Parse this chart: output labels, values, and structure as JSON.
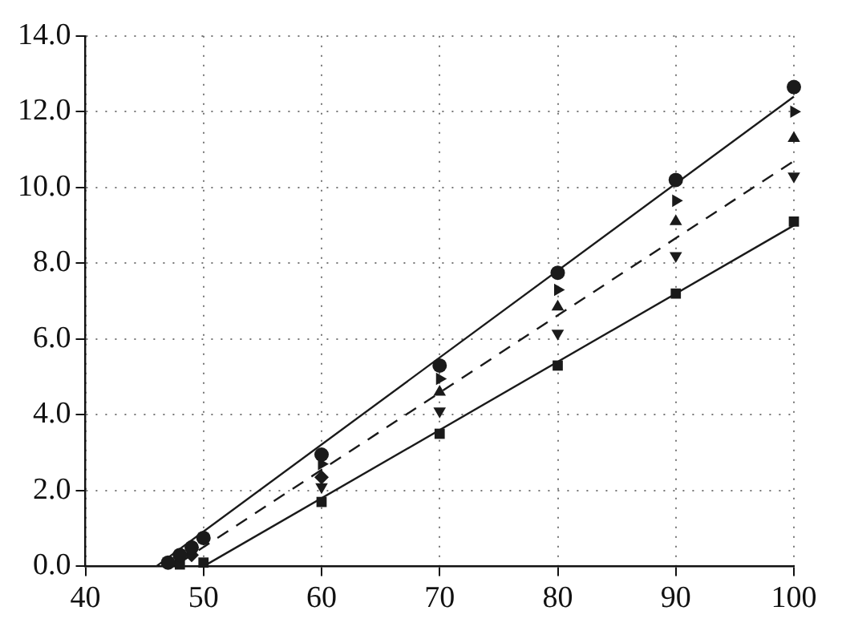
{
  "chart_data": {
    "type": "scatter",
    "xlim": [
      40,
      100
    ],
    "xticks": [
      40,
      50,
      60,
      70,
      80,
      90,
      100
    ],
    "ylim": [
      0,
      14
    ],
    "yticks": [
      {
        "value": 0,
        "label": "0.0"
      },
      {
        "value": 2,
        "label": "2.0"
      },
      {
        "value": 4,
        "label": "4.0"
      },
      {
        "value": 6,
        "label": "6.0"
      },
      {
        "value": 8,
        "label": "8.0"
      },
      {
        "value": 10,
        "label": "10.0"
      },
      {
        "value": 12,
        "label": "12.0"
      },
      {
        "value": 14,
        "label": "14.0"
      }
    ],
    "grid": true,
    "legend": false,
    "series": [
      {
        "type": "scatter",
        "marker": "circle",
        "color": "#1a1a1a",
        "x": [
          47,
          48,
          49,
          50,
          60,
          70,
          80,
          90,
          100
        ],
        "values": [
          0.1,
          0.3,
          0.5,
          0.75,
          2.95,
          5.3,
          7.75,
          10.2,
          12.65
        ]
      },
      {
        "type": "scatter",
        "marker": "triangle-right",
        "color": "#1a1a1a",
        "x": [
          60,
          70,
          80,
          90,
          100
        ],
        "values": [
          2.7,
          4.95,
          7.3,
          9.65,
          12.0
        ]
      },
      {
        "type": "scatter",
        "marker": "triangle",
        "color": "#1a1a1a",
        "x": [
          70,
          80,
          90,
          100
        ],
        "values": [
          4.6,
          6.85,
          9.1,
          11.3
        ]
      },
      {
        "type": "scatter",
        "marker": "diamond",
        "color": "#1a1a1a",
        "x": [
          49,
          60
        ],
        "values": [
          0.3,
          2.35
        ]
      },
      {
        "type": "scatter",
        "marker": "triangle-down",
        "color": "#1a1a1a",
        "x": [
          60,
          70,
          80,
          90,
          100
        ],
        "values": [
          2.1,
          4.1,
          6.15,
          8.2,
          10.3
        ]
      },
      {
        "type": "scatter",
        "marker": "square",
        "color": "#1a1a1a",
        "x": [
          48,
          50,
          60,
          70,
          80,
          90,
          100
        ],
        "values": [
          0.05,
          0.1,
          1.7,
          3.5,
          5.3,
          7.2,
          9.1
        ]
      },
      {
        "type": "line",
        "marker": "none",
        "line_style": "solid",
        "color": "#1a1a1a",
        "x": [
          46,
          100
        ],
        "values": [
          0,
          12.4
        ]
      },
      {
        "type": "line",
        "marker": "none",
        "line_style": "dashed",
        "color": "#1a1a1a",
        "x": [
          48,
          100
        ],
        "values": [
          0.1,
          10.7
        ]
      },
      {
        "type": "line",
        "marker": "none",
        "line_style": "solid",
        "color": "#1a1a1a",
        "x": [
          50,
          100
        ],
        "values": [
          0,
          9.0
        ]
      }
    ]
  }
}
